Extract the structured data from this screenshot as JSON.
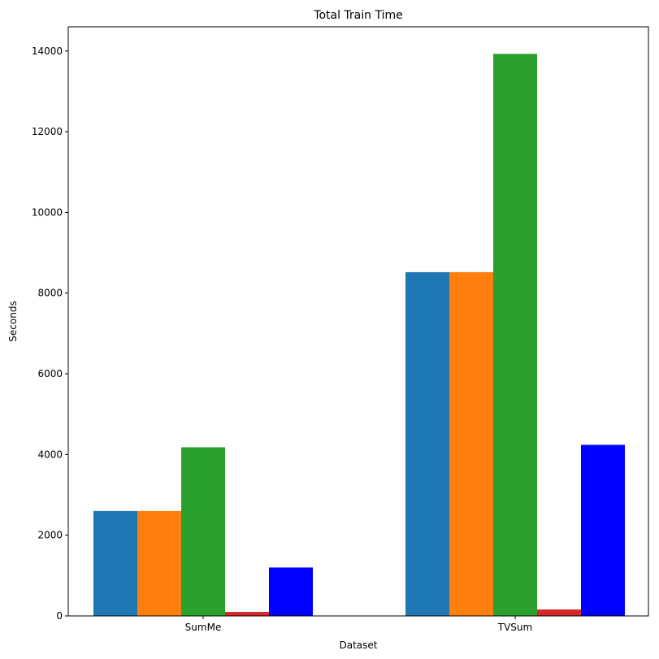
{
  "chart_data": {
    "type": "bar",
    "title": "Total Train Time",
    "xlabel": "Dataset",
    "ylabel": "Seconds",
    "categories": [
      "SumMe",
      "TVSum"
    ],
    "ylim": [
      0,
      14600
    ],
    "yticks": [
      0,
      2000,
      4000,
      6000,
      8000,
      10000,
      12000,
      14000
    ],
    "grid": false,
    "series": [
      {
        "color": "#1f77b4",
        "values": [
          2600,
          8520
        ]
      },
      {
        "color": "#ff7f0e",
        "values": [
          2600,
          8520
        ]
      },
      {
        "color": "#2ca02c",
        "values": [
          4180,
          13930
        ]
      },
      {
        "color": "#d62728",
        "values": [
          100,
          160
        ]
      },
      {
        "color": "#0000ff",
        "values": [
          1200,
          4240
        ]
      }
    ]
  }
}
